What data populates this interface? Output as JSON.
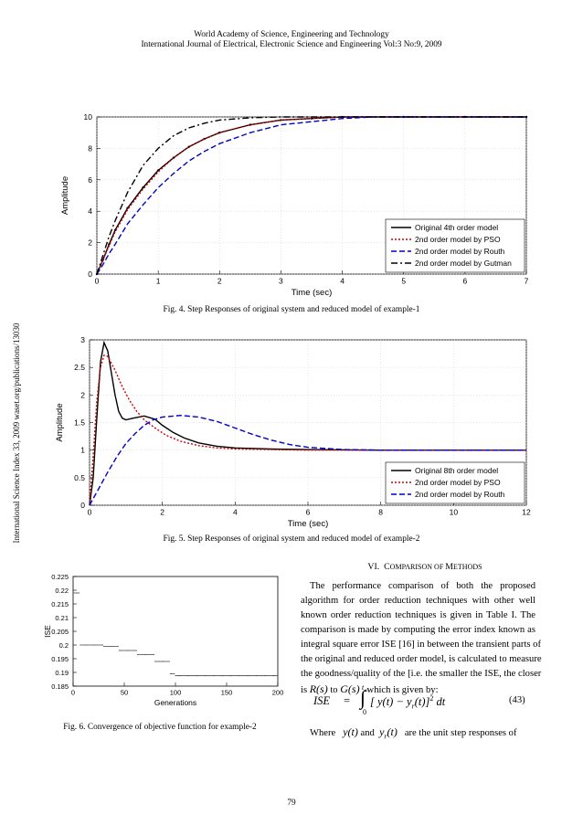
{
  "header": {
    "line1": "World Academy of Science, Engineering and Technology",
    "line2": "International Journal of Electrical, Electronic Science and Engineering Vol:3 No:9, 2009"
  },
  "sidebar_text": "International Science Index 33, 2009 waset.org/publications/13030",
  "page_number": "79",
  "figures": {
    "fig4": {
      "caption": "Fig.  4. Step Responses of original system and reduced model of example-1",
      "xlabel": "Time (sec)",
      "ylabel": "Amplitude",
      "xticks": [
        "0",
        "1",
        "2",
        "3",
        "4",
        "5",
        "6",
        "7"
      ],
      "yticks": [
        "0",
        "2",
        "4",
        "6",
        "8",
        "10"
      ],
      "legend": [
        "Original 4th order model",
        "2nd order model by PSO",
        "2nd order model by Routh",
        "2nd order model by Gutman"
      ]
    },
    "fig5": {
      "caption": "Fig.  5. Step Responses of original system and reduced model of example-2",
      "xlabel": "Time (sec)",
      "ylabel": "Amplitude",
      "xticks": [
        "0",
        "2",
        "4",
        "6",
        "8",
        "10",
        "12"
      ],
      "yticks": [
        "0",
        "0.5",
        "1",
        "1.5",
        "2",
        "2.5",
        "3"
      ],
      "legend": [
        "Original 8th order model",
        "2nd order model by PSO",
        "2nd order model by Routh"
      ]
    },
    "fig6": {
      "caption": "Fig. 6. Convergence of objective function for example-2",
      "xlabel": "Generations",
      "ylabel": "ISE",
      "xticks": [
        "0",
        "50",
        "100",
        "150",
        "200"
      ],
      "yticks": [
        "0.185",
        "0.19",
        "0.195",
        "0.2",
        "0.205",
        "0.21",
        "0.215",
        "0.22",
        "0.225"
      ]
    }
  },
  "chart_data": [
    {
      "type": "line",
      "xlim": [
        0,
        7
      ],
      "ylim": [
        0,
        10
      ],
      "legend_position": "bottom-right",
      "series": [
        {
          "name": "Original 4th order model",
          "color": "#000000",
          "style": "solid-marker",
          "x": [
            0,
            0.1,
            0.2,
            0.3,
            0.5,
            0.75,
            1,
            1.25,
            1.5,
            1.75,
            2,
            2.5,
            3,
            3.5,
            4,
            5,
            6,
            7
          ],
          "y": [
            0,
            0.9,
            1.9,
            2.8,
            4.2,
            5.5,
            6.6,
            7.4,
            8.1,
            8.6,
            9.0,
            9.5,
            9.8,
            9.9,
            10,
            10,
            10,
            10
          ]
        },
        {
          "name": "2nd order model by PSO",
          "color": "#cc0000",
          "style": "dotted",
          "x": [
            0,
            0.1,
            0.2,
            0.3,
            0.5,
            0.75,
            1,
            1.25,
            1.5,
            1.75,
            2,
            2.5,
            3,
            3.5,
            4,
            5,
            6,
            7
          ],
          "y": [
            0,
            0.9,
            1.8,
            2.7,
            4.1,
            5.4,
            6.5,
            7.4,
            8.1,
            8.6,
            9.0,
            9.5,
            9.8,
            9.9,
            10,
            10,
            10,
            10
          ]
        },
        {
          "name": "2nd order model by Routh",
          "color": "#0000cc",
          "style": "dashed",
          "x": [
            0,
            0.1,
            0.2,
            0.3,
            0.5,
            0.75,
            1,
            1.25,
            1.5,
            1.75,
            2,
            2.5,
            3,
            3.5,
            4,
            4.5,
            5,
            6,
            7
          ],
          "y": [
            0,
            0.6,
            1.3,
            1.9,
            3.2,
            4.4,
            5.5,
            6.4,
            7.2,
            7.8,
            8.3,
            9.0,
            9.5,
            9.7,
            9.9,
            10,
            10,
            10,
            10
          ]
        },
        {
          "name": "2nd order model by Gutman",
          "color": "#000000",
          "style": "dashdot",
          "x": [
            0,
            0.1,
            0.2,
            0.3,
            0.5,
            0.75,
            1,
            1.25,
            1.5,
            1.75,
            2,
            2.5,
            3,
            3.5,
            4,
            5,
            6,
            7
          ],
          "y": [
            0,
            1.2,
            2.4,
            3.4,
            5.2,
            6.9,
            8.0,
            8.8,
            9.3,
            9.6,
            9.8,
            9.95,
            10,
            10,
            10,
            10,
            10,
            10
          ]
        }
      ]
    },
    {
      "type": "line",
      "xlim": [
        0,
        12
      ],
      "ylim": [
        0,
        3
      ],
      "legend_position": "bottom-right",
      "series": [
        {
          "name": "Original 8th order model",
          "color": "#000000",
          "style": "solid",
          "x": [
            0,
            0.1,
            0.2,
            0.3,
            0.4,
            0.5,
            0.6,
            0.7,
            0.8,
            0.9,
            1.0,
            1.2,
            1.5,
            1.8,
            2.0,
            2.3,
            2.6,
            3,
            3.5,
            4,
            5,
            6,
            8,
            12
          ],
          "y": [
            0,
            0.5,
            1.6,
            2.6,
            2.95,
            2.8,
            2.4,
            2.0,
            1.7,
            1.58,
            1.55,
            1.58,
            1.62,
            1.56,
            1.45,
            1.32,
            1.22,
            1.13,
            1.07,
            1.04,
            1.02,
            1.01,
            1,
            1
          ]
        },
        {
          "name": "2nd order model by PSO",
          "color": "#cc0000",
          "style": "dotted",
          "x": [
            0,
            0.1,
            0.2,
            0.3,
            0.4,
            0.5,
            0.7,
            0.9,
            1.1,
            1.3,
            1.5,
            1.8,
            2.1,
            2.5,
            3,
            3.5,
            4,
            5,
            6,
            8,
            12
          ],
          "y": [
            0,
            0.9,
            1.9,
            2.5,
            2.72,
            2.7,
            2.45,
            2.15,
            1.9,
            1.7,
            1.55,
            1.4,
            1.27,
            1.16,
            1.08,
            1.04,
            1.02,
            1.01,
            1,
            1,
            1
          ]
        },
        {
          "name": "2nd order model by Routh",
          "color": "#0000cc",
          "style": "dashed",
          "x": [
            0,
            0.25,
            0.5,
            0.75,
            1,
            1.25,
            1.5,
            1.75,
            2,
            2.5,
            3,
            3.5,
            4,
            4.5,
            5,
            5.5,
            6,
            7,
            8,
            9,
            10,
            12
          ],
          "y": [
            0,
            0.3,
            0.6,
            0.88,
            1.12,
            1.3,
            1.45,
            1.55,
            1.6,
            1.63,
            1.6,
            1.52,
            1.4,
            1.28,
            1.18,
            1.1,
            1.05,
            1.01,
            1,
            1,
            1,
            1
          ]
        }
      ]
    },
    {
      "type": "scatter",
      "xlim": [
        0,
        200
      ],
      "ylim": [
        0.185,
        0.225
      ],
      "steps": [
        {
          "x0": 0,
          "x1": 1,
          "y": 0.225
        },
        {
          "x0": 1,
          "x1": 7,
          "y": 0.219
        },
        {
          "x0": 7,
          "x1": 30,
          "y": 0.2
        },
        {
          "x0": 30,
          "x1": 45,
          "y": 0.1995
        },
        {
          "x0": 45,
          "x1": 63,
          "y": 0.198
        },
        {
          "x0": 63,
          "x1": 80,
          "y": 0.1965
        },
        {
          "x0": 80,
          "x1": 95,
          "y": 0.194
        },
        {
          "x0": 95,
          "x1": 100,
          "y": 0.1895
        },
        {
          "x0": 100,
          "x1": 200,
          "y": 0.1888
        }
      ]
    }
  ],
  "section": {
    "heading_prefix": "VI.",
    "heading_C": "C",
    "heading_rest1": "OMPARISON OF ",
    "heading_M": "M",
    "heading_rest2": "ETHODS",
    "lines": [
      "The performance comparison of both the proposed",
      "algorithm for order reduction techniques with other well",
      "known order reduction techniques is given in Table I. The",
      "comparison is made by computing the error index known as",
      "integral square error ISE [16] in between the transient parts of",
      "the original and reduced order model, is calculated to measure",
      "the goodness/quality of the [i.e. the smaller the ISE, the closer"
    ],
    "line8_pre": "is ",
    "line8_R": "R(s)",
    "line8_mid": " to ",
    "line8_G": "G(s)",
    "line8_post": " , which is given by:",
    "equation": {
      "lhs": "ISE",
      "eq": "=",
      "upper": "t",
      "upper_sub": "∞",
      "lower": "0",
      "integral": "∫",
      "body": "[ y(t) − y",
      "body_sub": "r",
      "body_end": "(t)]",
      "power": "2",
      "dt": " dt",
      "number": "(43)"
    },
    "where": {
      "pre": "Where",
      "y": "y(t)",
      "and": "and",
      "yr": "y",
      "yr_sub": "r",
      "yr_end": "(t)",
      "post": "are the unit step responses of"
    }
  }
}
